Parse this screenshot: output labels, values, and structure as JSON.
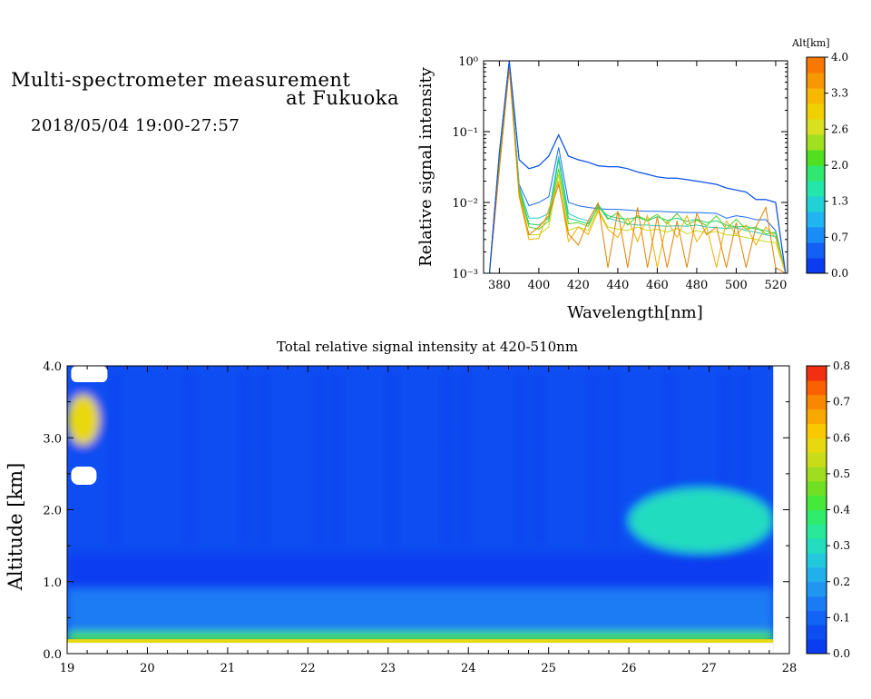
{
  "header": {
    "title_line1": "Multi-spectrometer measurement",
    "title_line2": "at Fukuoka",
    "datetime": "2018/05/04 19:00-27:57"
  },
  "chart_data": [
    {
      "type": "line",
      "xlabel": "Wavelength[nm]",
      "ylabel": "Relative signal intensity",
      "xlim": [
        372,
        526
      ],
      "ylim": [
        0.001,
        1
      ],
      "y_scale": "log",
      "x_ticks": [
        380,
        400,
        420,
        440,
        460,
        480,
        500,
        520
      ],
      "y_tick_labels": [
        "10⁰",
        "10⁻¹",
        "10⁻²",
        "10⁻³"
      ],
      "y_tick_values": [
        1,
        0.1,
        0.01,
        0.001
      ],
      "x": [
        375,
        380,
        385,
        390,
        395,
        400,
        405,
        410,
        415,
        420,
        425,
        430,
        435,
        440,
        445,
        450,
        455,
        460,
        465,
        470,
        475,
        480,
        485,
        490,
        495,
        500,
        505,
        510,
        515,
        520,
        525
      ],
      "series": [
        {
          "color": "#0f55e8",
          "values": [
            0.001,
            0.05,
            1.0,
            0.04,
            0.03,
            0.033,
            0.045,
            0.09,
            0.045,
            0.04,
            0.037,
            0.033,
            0.032,
            0.032,
            0.03,
            0.027,
            0.025,
            0.023,
            0.022,
            0.022,
            0.021,
            0.02,
            0.019,
            0.018,
            0.016,
            0.015,
            0.014,
            0.011,
            0.011,
            0.01,
            0.001
          ]
        },
        {
          "color": "#1b6cf0",
          "values": [
            0.001,
            0.05,
            1.0,
            0.018,
            0.009,
            0.01,
            0.012,
            0.06,
            0.01,
            0.009,
            0.0085,
            0.0082,
            0.008,
            0.008,
            0.0078,
            0.0076,
            0.0075,
            0.0075,
            0.0074,
            0.0073,
            0.0072,
            0.0072,
            0.0071,
            0.007,
            0.006,
            0.0065,
            0.0062,
            0.0057,
            0.0057,
            0.004,
            0.001
          ]
        },
        {
          "color": "#24c8c8",
          "values": [
            0.001,
            0.04,
            0.95,
            0.017,
            0.006,
            0.006,
            0.007,
            0.045,
            0.007,
            0.006,
            0.0055,
            0.0095,
            0.006,
            0.0055,
            0.005,
            0.0048,
            0.0048,
            0.0047,
            0.0046,
            0.0047,
            0.0046,
            0.0048,
            0.0045,
            0.0044,
            0.0043,
            0.0044,
            0.004,
            0.0038,
            0.0035,
            0.0033,
            0.001
          ]
        },
        {
          "color": "#20d070",
          "values": [
            0.001,
            0.04,
            0.9,
            0.016,
            0.005,
            0.0048,
            0.006,
            0.04,
            0.006,
            0.0055,
            0.005,
            0.0085,
            0.0065,
            0.006,
            0.0058,
            0.0062,
            0.0055,
            0.0063,
            0.0056,
            0.006,
            0.0054,
            0.0058,
            0.0052,
            0.0055,
            0.0048,
            0.0045,
            0.0046,
            0.0042,
            0.004,
            0.0036,
            0.001
          ]
        },
        {
          "color": "#50d020",
          "values": [
            0.001,
            0.035,
            0.85,
            0.015,
            0.0045,
            0.0042,
            0.0055,
            0.03,
            0.005,
            0.0052,
            0.0046,
            0.009,
            0.0058,
            0.0072,
            0.0048,
            0.0065,
            0.0056,
            0.0068,
            0.005,
            0.007,
            0.0048,
            0.0056,
            0.0047,
            0.0065,
            0.0042,
            0.0058,
            0.0042,
            0.0045,
            0.0036,
            0.0038,
            0.001
          ]
        },
        {
          "color": "#c8d818",
          "values": [
            0.001,
            0.03,
            0.8,
            0.014,
            0.0035,
            0.0035,
            0.0045,
            0.025,
            0.004,
            0.0045,
            0.004,
            0.008,
            0.0045,
            0.0042,
            0.004,
            0.0045,
            0.004,
            0.0042,
            0.0038,
            0.0043,
            0.0036,
            0.004,
            0.0037,
            0.0039,
            0.0035,
            0.0034,
            0.0032,
            0.003,
            0.0028,
            0.0027,
            0.001
          ]
        },
        {
          "color": "#f0b000",
          "values": [
            0.001,
            0.03,
            0.8,
            0.012,
            0.003,
            0.0031,
            0.008,
            0.02,
            0.0028,
            0.0045,
            0.0035,
            0.0075,
            0.0042,
            0.0032,
            0.006,
            0.0028,
            0.0065,
            0.0012,
            0.0055,
            0.0032,
            0.0065,
            0.0028,
            0.0045,
            0.0012,
            0.0055,
            0.0035,
            0.0048,
            0.0025,
            0.0045,
            0.0032,
            0.001
          ]
        },
        {
          "color": "#e08000",
          "values": [
            0.001,
            0.03,
            0.8,
            0.013,
            0.0035,
            0.0045,
            0.0065,
            0.018,
            0.0036,
            0.0025,
            0.0055,
            0.0098,
            0.0012,
            0.0075,
            0.0012,
            0.0085,
            0.0012,
            0.0062,
            0.0012,
            0.0055,
            0.0012,
            0.007,
            0.0035,
            0.0045,
            0.0012,
            0.0052,
            0.0012,
            0.0045,
            0.0085,
            0.0012,
            0.001
          ]
        }
      ],
      "colorbar": {
        "title": "Alt[km]",
        "tick_labels": [
          "4.0",
          "3.3",
          "2.6",
          "2.0",
          "1.3",
          "0.7",
          "0.0"
        ],
        "colors": [
          "#0a3cf0",
          "#1460f5",
          "#1a8cf5",
          "#20b4f0",
          "#20d2d6",
          "#22e6aa",
          "#30e870",
          "#50e020",
          "#a0e020",
          "#d8e020",
          "#f0d000",
          "#f8b800",
          "#f89800",
          "#f87800"
        ]
      }
    },
    {
      "type": "heatmap",
      "title": "Total relative signal intensity at 420-510nm",
      "ylabel": "Altitude [km]",
      "xlim": [
        19,
        28
      ],
      "ylim": [
        0,
        4
      ],
      "x_tick_labels": [
        "19",
        "20",
        "21",
        "22",
        "23",
        "24",
        "25",
        "26",
        "27",
        "28"
      ],
      "y_tick_labels": [
        "0.0",
        "1.0",
        "2.0",
        "3.0",
        "4.0"
      ],
      "y_tick_values": [
        0,
        1,
        2,
        3,
        4
      ],
      "colorbar": {
        "tick_labels": [
          "0.8",
          "0.7",
          "0.6",
          "0.5",
          "0.4",
          "0.3",
          "0.2",
          "0.1",
          "0.0"
        ],
        "tick_values": [
          0.8,
          0.7,
          0.6,
          0.5,
          0.4,
          0.3,
          0.2,
          0.1,
          0.0
        ],
        "range": [
          0,
          0.8
        ],
        "colors": [
          "#0a3cf0",
          "#0c4ef2",
          "#1264f4",
          "#1a7cf4",
          "#2096f0",
          "#22b0ec",
          "#22c8dc",
          "#24dcc0",
          "#28e89a",
          "#30ec6c",
          "#46e83a",
          "#70e024",
          "#a0dc20",
          "#c8dc18",
          "#e8d810",
          "#f8c800",
          "#f8a800",
          "#f88800",
          "#f86000",
          "#f03010"
        ]
      },
      "bands": [
        {
          "alt": [
            3.0,
            4.0
          ],
          "value": 0.06
        },
        {
          "alt": [
            1.4,
            3.0
          ],
          "value": 0.05
        },
        {
          "alt": [
            0.9,
            1.4
          ],
          "value": 0.04
        },
        {
          "alt": [
            0.3,
            0.9
          ],
          "value": 0.16
        },
        {
          "alt": [
            0.15,
            0.3
          ],
          "value": 0.4
        }
      ],
      "features": [
        {
          "x": [
            26.0,
            27.8
          ],
          "alt": [
            1.4,
            2.3
          ],
          "value": 0.3
        },
        {
          "x": [
            19.0,
            19.4
          ],
          "alt": [
            2.9,
            3.6
          ],
          "value": 0.6
        }
      ]
    }
  ]
}
